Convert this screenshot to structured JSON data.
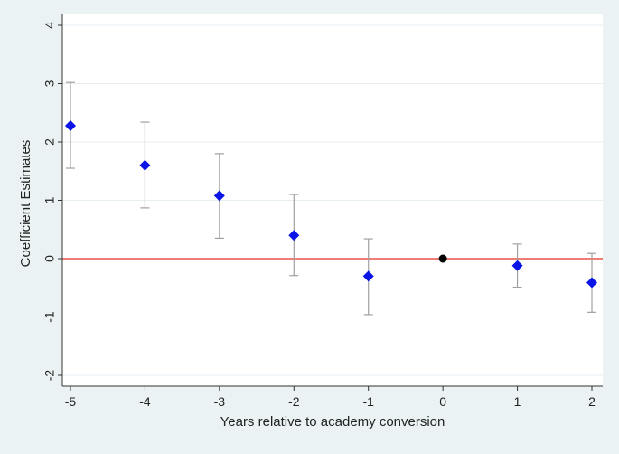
{
  "chart_data": {
    "type": "scatter",
    "title": "",
    "xlabel": "Years relative to academy conversion",
    "ylabel": "Coefficient Estimates",
    "xlim": [
      -5,
      2
    ],
    "ylim": [
      -2,
      4
    ],
    "xticks": [
      -5,
      -4,
      -3,
      -2,
      -1,
      0,
      1,
      2
    ],
    "yticks": [
      -2,
      -1,
      0,
      1,
      2,
      3,
      4
    ],
    "grid": "horizontal",
    "reference_line": {
      "y": 0,
      "color": "#e8504a"
    },
    "series": [
      {
        "marker": "diamond",
        "color": "#0a14e6",
        "points": [
          {
            "x": -5,
            "y": 2.28,
            "lo": 1.55,
            "hi": 3.02
          },
          {
            "x": -4,
            "y": 1.6,
            "lo": 0.87,
            "hi": 2.34
          },
          {
            "x": -3,
            "y": 1.08,
            "lo": 0.35,
            "hi": 1.8
          },
          {
            "x": -2,
            "y": 0.4,
            "lo": -0.29,
            "hi": 1.1
          },
          {
            "x": -1,
            "y": -0.3,
            "lo": -0.96,
            "hi": 0.34
          },
          {
            "x": 1,
            "y": -0.12,
            "lo": -0.49,
            "hi": 0.25
          },
          {
            "x": 2,
            "y": -0.41,
            "lo": -0.92,
            "hi": 0.09
          }
        ]
      },
      {
        "marker": "circle",
        "color": "#000000",
        "points": [
          {
            "x": 0,
            "y": 0
          }
        ]
      }
    ],
    "colors": {
      "background": "#eaf2f3",
      "plot_area": "#ffffff",
      "grid": "#e6eef0",
      "error_bar": "#a0a0a0",
      "axis": "#333333"
    }
  }
}
